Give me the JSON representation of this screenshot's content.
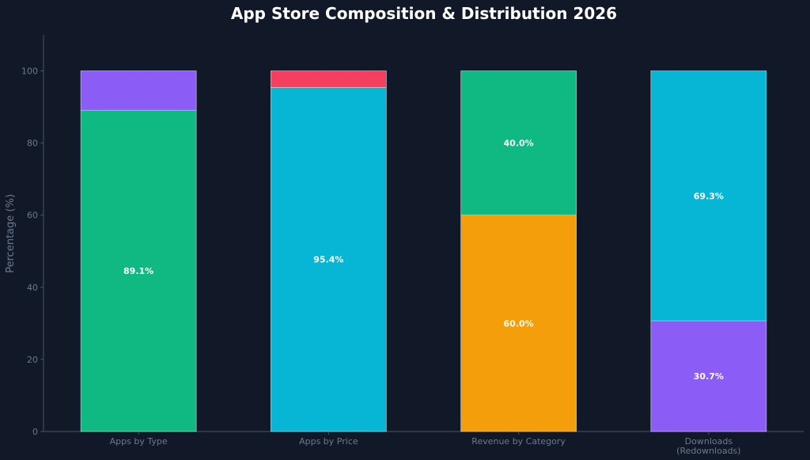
{
  "chart_data": {
    "type": "bar",
    "stacked": true,
    "title": "App Store Composition & Distribution 2026",
    "xlabel": "",
    "ylabel": "Percentage (%)",
    "ylim": [
      0,
      110
    ],
    "yticks": [
      0,
      20,
      40,
      60,
      80,
      100
    ],
    "grid": false,
    "categories": [
      "Apps by Type",
      "Apps by Price",
      "Revenue by Category",
      "Downloads\n(Redownloads)"
    ],
    "stacks": [
      {
        "category": "Apps by Type",
        "segments": [
          {
            "value": 89.1,
            "color": "#10b981",
            "label": "89.1%"
          },
          {
            "value": 10.9,
            "color": "#8b5cf6",
            "label": ""
          }
        ]
      },
      {
        "category": "Apps by Price",
        "segments": [
          {
            "value": 95.4,
            "color": "#06b6d4",
            "label": "95.4%"
          },
          {
            "value": 4.6,
            "color": "#f43f5e",
            "label": ""
          }
        ]
      },
      {
        "category": "Revenue by Category",
        "segments": [
          {
            "value": 60.0,
            "color": "#f59e0b",
            "label": "60.0%"
          },
          {
            "value": 40.0,
            "color": "#10b981",
            "label": "40.0%"
          }
        ]
      },
      {
        "category": "Downloads\n(Redownloads)",
        "segments": [
          {
            "value": 30.7,
            "color": "#8b5cf6",
            "label": "30.7%"
          },
          {
            "value": 69.3,
            "color": "#06b6d4",
            "label": "69.3%"
          }
        ]
      }
    ]
  },
  "colors": {
    "background": "#111827",
    "axis": "#4b5563",
    "text_muted": "#6b7a90",
    "title": "#ffffff",
    "bar_edge": "#d1d5db"
  }
}
